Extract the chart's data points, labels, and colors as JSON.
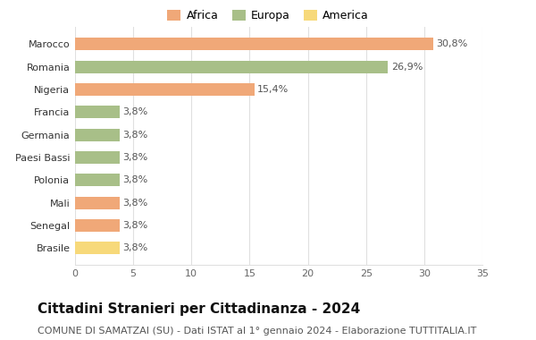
{
  "categories": [
    "Brasile",
    "Senegal",
    "Mali",
    "Polonia",
    "Paesi Bassi",
    "Germania",
    "Francia",
    "Nigeria",
    "Romania",
    "Marocco"
  ],
  "values": [
    3.8,
    3.8,
    3.8,
    3.8,
    3.8,
    3.8,
    3.8,
    15.4,
    26.9,
    30.8
  ],
  "colors": [
    "#f7d97a",
    "#f0a878",
    "#f0a878",
    "#a8bf88",
    "#a8bf88",
    "#a8bf88",
    "#a8bf88",
    "#f0a878",
    "#a8bf88",
    "#f0a878"
  ],
  "labels": [
    "3,8%",
    "3,8%",
    "3,8%",
    "3,8%",
    "3,8%",
    "3,8%",
    "3,8%",
    "15,4%",
    "26,9%",
    "30,8%"
  ],
  "legend_labels": [
    "Africa",
    "Europa",
    "America"
  ],
  "legend_colors": [
    "#f0a878",
    "#a8bf88",
    "#f7d97a"
  ],
  "title": "Cittadini Stranieri per Cittadinanza - 2024",
  "subtitle": "COMUNE DI SAMATZAI (SU) - Dati ISTAT al 1° gennaio 2024 - Elaborazione TUTTITALIA.IT",
  "xlim": [
    0,
    35
  ],
  "xticks": [
    0,
    5,
    10,
    15,
    20,
    25,
    30,
    35
  ],
  "background_color": "#ffffff",
  "grid_color": "#e0e0e0",
  "title_fontsize": 11,
  "subtitle_fontsize": 8,
  "label_fontsize": 8,
  "tick_fontsize": 8,
  "legend_fontsize": 9
}
